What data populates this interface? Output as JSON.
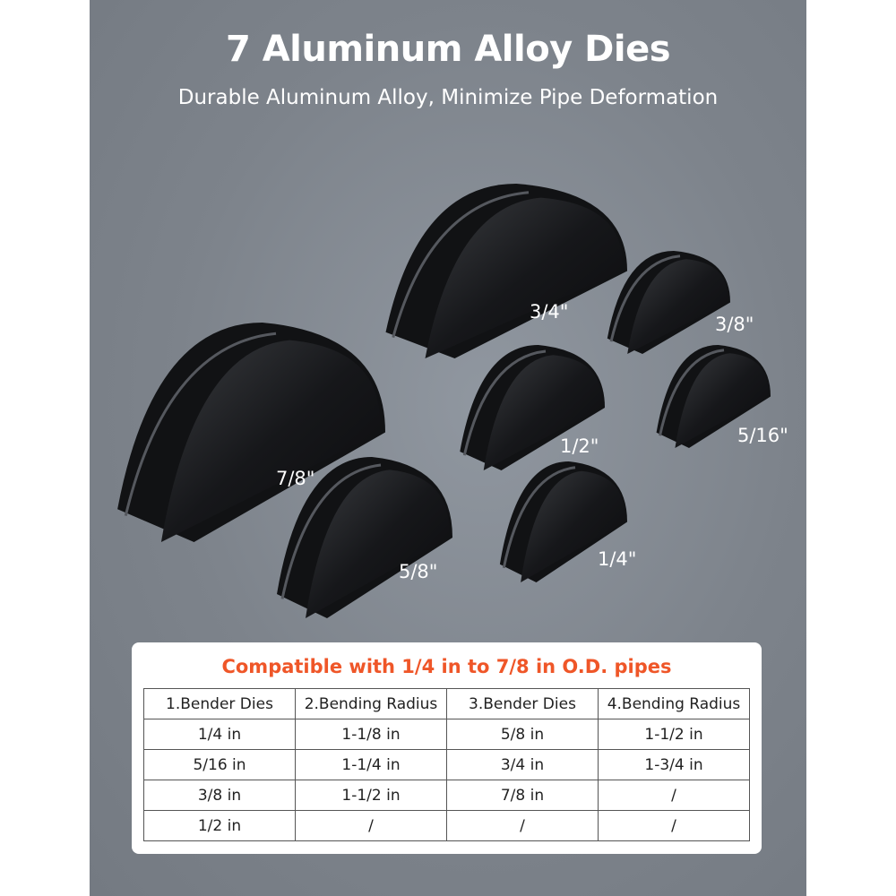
{
  "header": {
    "title": "7 Aluminum Alloy Dies",
    "subtitle": "Durable Aluminum Alloy, Minimize Pipe Deformation"
  },
  "dies": [
    {
      "label": "3/4\""
    },
    {
      "label": "3/8\""
    },
    {
      "label": "7/8\""
    },
    {
      "label": "1/2\""
    },
    {
      "label": "5/16\""
    },
    {
      "label": "5/8\""
    },
    {
      "label": "1/4\""
    }
  ],
  "compat": {
    "heading": "Compatible with 1/4 in to 7/8 in O.D. pipes",
    "accent": "#ef5628"
  },
  "table": {
    "headers": [
      "1.Bender Dies",
      "2.Bending Radius",
      "3.Bender Dies",
      "4.Bending Radius"
    ],
    "rows": [
      [
        "1/4 in",
        "1-1/8 in",
        "5/8 in",
        "1-1/2 in"
      ],
      [
        "5/16 in",
        "1-1/4 in",
        "3/4 in",
        "1-3/4 in"
      ],
      [
        "3/8 in",
        "1-1/2 in",
        "7/8 in",
        "/"
      ],
      [
        "1/2 in",
        "/",
        "/",
        "/"
      ]
    ]
  }
}
